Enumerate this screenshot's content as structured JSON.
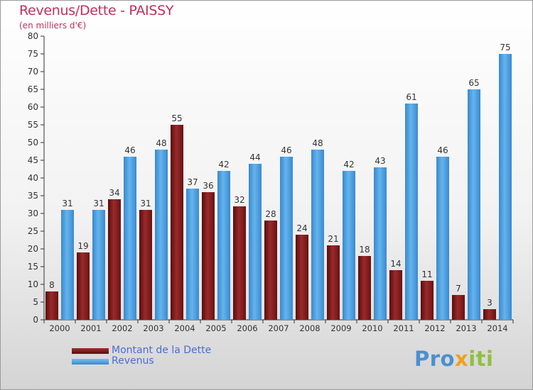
{
  "title": "Revenus/Dette - PAISSY",
  "subtitle": "(en milliers d'€)",
  "chart_data": {
    "type": "bar",
    "title": "Revenus/Dette - PAISSY",
    "subtitle": "(en milliers d'€)",
    "xlabel": "",
    "ylabel": "",
    "ylim": [
      0,
      80
    ],
    "ytick_step": 5,
    "grid": false,
    "legend_position": "bottom-left",
    "categories": [
      "2000",
      "2001",
      "2002",
      "2003",
      "2004",
      "2005",
      "2006",
      "2007",
      "2008",
      "2009",
      "2010",
      "2011",
      "2012",
      "2013",
      "2014"
    ],
    "series": [
      {
        "name": "Montant de la Dette",
        "color": "#7a1a1a",
        "values": [
          8,
          19,
          34,
          31,
          55,
          36,
          32,
          28,
          24,
          21,
          18,
          14,
          11,
          7,
          3
        ]
      },
      {
        "name": "Revenus",
        "color": "#4aa0e0",
        "values": [
          31,
          31,
          46,
          48,
          37,
          42,
          44,
          46,
          48,
          42,
          43,
          61,
          46,
          65,
          75
        ]
      }
    ]
  },
  "legend": {
    "items": [
      {
        "label": "Montant de la Dette",
        "color": "#7a1a1a"
      },
      {
        "label": "Revenus",
        "color": "#4aa0e0"
      }
    ]
  },
  "logo": {
    "part1": "Pro",
    "part2": "x",
    "part3": "iti"
  }
}
